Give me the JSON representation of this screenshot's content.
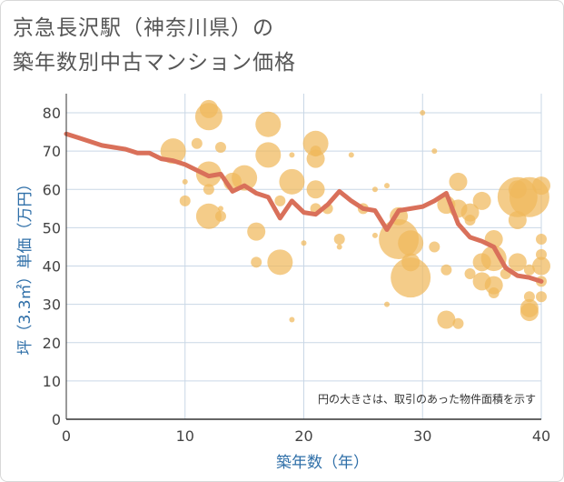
{
  "title": {
    "line1": "京急長沢駅（神奈川県）の",
    "line2": "築年数別中古マンション価格"
  },
  "note": "円の大きさは、取引のあった物件面積を示す",
  "colors": {
    "bubble": "#f0b85c",
    "line": "#d9705a",
    "grid": "#c9d7e6",
    "axis_text": "#2f6fa8"
  },
  "chart_data": {
    "type": "scatter",
    "xlabel": "築年数（年）",
    "ylabel": "坪（3.3㎡）単価（万円）",
    "xlim": [
      0,
      40
    ],
    "ylim": [
      0,
      85
    ],
    "xticks": [
      0,
      10,
      20,
      30,
      40
    ],
    "yticks": [
      0,
      10,
      20,
      30,
      40,
      50,
      60,
      70,
      80
    ],
    "grid": true,
    "bubbles": [
      {
        "x": 9,
        "y": 70,
        "s": 14
      },
      {
        "x": 10,
        "y": 57,
        "s": 6
      },
      {
        "x": 10,
        "y": 62,
        "s": 3
      },
      {
        "x": 11,
        "y": 72,
        "s": 6
      },
      {
        "x": 12,
        "y": 81,
        "s": 10
      },
      {
        "x": 12,
        "y": 79,
        "s": 15
      },
      {
        "x": 12,
        "y": 64,
        "s": 14
      },
      {
        "x": 12,
        "y": 60,
        "s": 6
      },
      {
        "x": 12,
        "y": 53,
        "s": 14
      },
      {
        "x": 13,
        "y": 71,
        "s": 6
      },
      {
        "x": 13,
        "y": 53,
        "s": 6
      },
      {
        "x": 13,
        "y": 55,
        "s": 3
      },
      {
        "x": 14,
        "y": 62,
        "s": 10
      },
      {
        "x": 15,
        "y": 63,
        "s": 14
      },
      {
        "x": 16,
        "y": 49,
        "s": 10
      },
      {
        "x": 16,
        "y": 41,
        "s": 6
      },
      {
        "x": 17,
        "y": 77,
        "s": 14
      },
      {
        "x": 17,
        "y": 69,
        "s": 14
      },
      {
        "x": 18,
        "y": 57,
        "s": 6
      },
      {
        "x": 18,
        "y": 41,
        "s": 14
      },
      {
        "x": 19,
        "y": 62,
        "s": 14
      },
      {
        "x": 19,
        "y": 26,
        "s": 3
      },
      {
        "x": 19,
        "y": 69,
        "s": 3
      },
      {
        "x": 20,
        "y": 46,
        "s": 3
      },
      {
        "x": 21,
        "y": 72,
        "s": 14
      },
      {
        "x": 21,
        "y": 70,
        "s": 6
      },
      {
        "x": 21,
        "y": 68,
        "s": 10
      },
      {
        "x": 21,
        "y": 60,
        "s": 10
      },
      {
        "x": 21,
        "y": 55,
        "s": 6
      },
      {
        "x": 22,
        "y": 55,
        "s": 6
      },
      {
        "x": 23,
        "y": 47,
        "s": 6
      },
      {
        "x": 23,
        "y": 45,
        "s": 3
      },
      {
        "x": 24,
        "y": 69,
        "s": 3
      },
      {
        "x": 25,
        "y": 55,
        "s": 6
      },
      {
        "x": 26,
        "y": 60,
        "s": 3
      },
      {
        "x": 26,
        "y": 48,
        "s": 3
      },
      {
        "x": 27,
        "y": 61,
        "s": 3
      },
      {
        "x": 27,
        "y": 30,
        "s": 3
      },
      {
        "x": 28,
        "y": 53,
        "s": 10
      },
      {
        "x": 28,
        "y": 47,
        "s": 22
      },
      {
        "x": 29,
        "y": 46,
        "s": 14
      },
      {
        "x": 29,
        "y": 41,
        "s": 10
      },
      {
        "x": 29,
        "y": 37,
        "s": 22
      },
      {
        "x": 30,
        "y": 80,
        "s": 3
      },
      {
        "x": 31,
        "y": 70,
        "s": 3
      },
      {
        "x": 31,
        "y": 45,
        "s": 6
      },
      {
        "x": 32,
        "y": 56,
        "s": 10
      },
      {
        "x": 32,
        "y": 39,
        "s": 6
      },
      {
        "x": 32,
        "y": 26,
        "s": 10
      },
      {
        "x": 33,
        "y": 62,
        "s": 10
      },
      {
        "x": 33,
        "y": 55,
        "s": 10
      },
      {
        "x": 33,
        "y": 25,
        "s": 6
      },
      {
        "x": 34,
        "y": 54,
        "s": 10
      },
      {
        "x": 34,
        "y": 52,
        "s": 6
      },
      {
        "x": 34,
        "y": 38,
        "s": 6
      },
      {
        "x": 35,
        "y": 57,
        "s": 10
      },
      {
        "x": 35,
        "y": 41,
        "s": 10
      },
      {
        "x": 35,
        "y": 36,
        "s": 10
      },
      {
        "x": 36,
        "y": 47,
        "s": 10
      },
      {
        "x": 36,
        "y": 42,
        "s": 14
      },
      {
        "x": 36,
        "y": 35,
        "s": 10
      },
      {
        "x": 36,
        "y": 33,
        "s": 6
      },
      {
        "x": 37,
        "y": 38,
        "s": 6
      },
      {
        "x": 38,
        "y": 58,
        "s": 22
      },
      {
        "x": 38,
        "y": 60,
        "s": 10
      },
      {
        "x": 38,
        "y": 52,
        "s": 10
      },
      {
        "x": 38,
        "y": 41,
        "s": 10
      },
      {
        "x": 39,
        "y": 58,
        "s": 22
      },
      {
        "x": 39,
        "y": 39,
        "s": 6
      },
      {
        "x": 39,
        "y": 32,
        "s": 6
      },
      {
        "x": 39,
        "y": 29,
        "s": 10
      },
      {
        "x": 39,
        "y": 28,
        "s": 10
      },
      {
        "x": 40,
        "y": 61,
        "s": 10
      },
      {
        "x": 40,
        "y": 47,
        "s": 6
      },
      {
        "x": 40,
        "y": 43,
        "s": 6
      },
      {
        "x": 40,
        "y": 40,
        "s": 10
      },
      {
        "x": 40,
        "y": 36,
        "s": 6
      },
      {
        "x": 40,
        "y": 32,
        "s": 6
      }
    ],
    "trend": [
      {
        "x": 0,
        "y": 74.5
      },
      {
        "x": 1,
        "y": 73.5
      },
      {
        "x": 2,
        "y": 72.5
      },
      {
        "x": 3,
        "y": 71.5
      },
      {
        "x": 4,
        "y": 71
      },
      {
        "x": 5,
        "y": 70.5
      },
      {
        "x": 6,
        "y": 69.5
      },
      {
        "x": 7,
        "y": 69.5
      },
      {
        "x": 8,
        "y": 68
      },
      {
        "x": 9,
        "y": 67.5
      },
      {
        "x": 10,
        "y": 66.5
      },
      {
        "x": 11,
        "y": 65
      },
      {
        "x": 12,
        "y": 63.5
      },
      {
        "x": 13,
        "y": 64
      },
      {
        "x": 14,
        "y": 59.5
      },
      {
        "x": 15,
        "y": 61
      },
      {
        "x": 16,
        "y": 59
      },
      {
        "x": 17,
        "y": 58
      },
      {
        "x": 18,
        "y": 52.5
      },
      {
        "x": 19,
        "y": 57
      },
      {
        "x": 20,
        "y": 54
      },
      {
        "x": 21,
        "y": 53.5
      },
      {
        "x": 22,
        "y": 56
      },
      {
        "x": 23,
        "y": 59.5
      },
      {
        "x": 24,
        "y": 57
      },
      {
        "x": 25,
        "y": 55
      },
      {
        "x": 26,
        "y": 54.5
      },
      {
        "x": 27,
        "y": 49.5
      },
      {
        "x": 28,
        "y": 54.5
      },
      {
        "x": 29,
        "y": 55
      },
      {
        "x": 30,
        "y": 55.5
      },
      {
        "x": 31,
        "y": 57
      },
      {
        "x": 32,
        "y": 59
      },
      {
        "x": 33,
        "y": 51
      },
      {
        "x": 34,
        "y": 47.5
      },
      {
        "x": 35,
        "y": 46.5
      },
      {
        "x": 36,
        "y": 45
      },
      {
        "x": 37,
        "y": 39.5
      },
      {
        "x": 38,
        "y": 37.5
      },
      {
        "x": 39,
        "y": 37
      },
      {
        "x": 40,
        "y": 36
      }
    ]
  }
}
